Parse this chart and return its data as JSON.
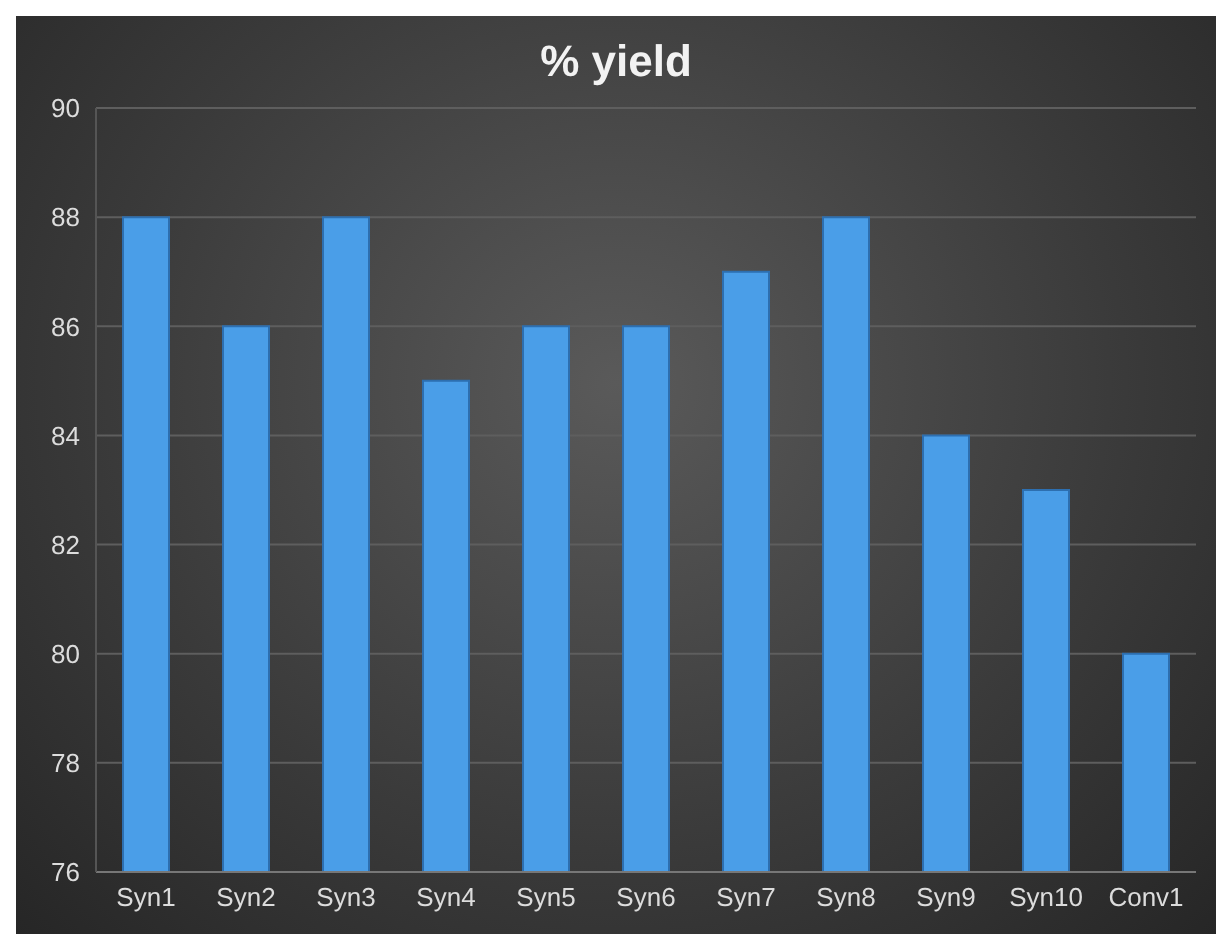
{
  "chart_data": {
    "type": "bar",
    "title": "% yield",
    "categories": [
      "Syn1",
      "Syn2",
      "Syn3",
      "Syn4",
      "Syn5",
      "Syn6",
      "Syn7",
      "Syn8",
      "Syn9",
      "Syn10",
      "Conv1"
    ],
    "values": [
      88,
      86,
      88,
      85,
      86,
      86,
      87,
      88,
      84,
      83,
      80
    ],
    "color": "#4a9ee8",
    "ylim": [
      76,
      90
    ],
    "yticks": [
      76,
      78,
      80,
      82,
      84,
      86,
      88,
      90
    ],
    "grid": "y"
  }
}
